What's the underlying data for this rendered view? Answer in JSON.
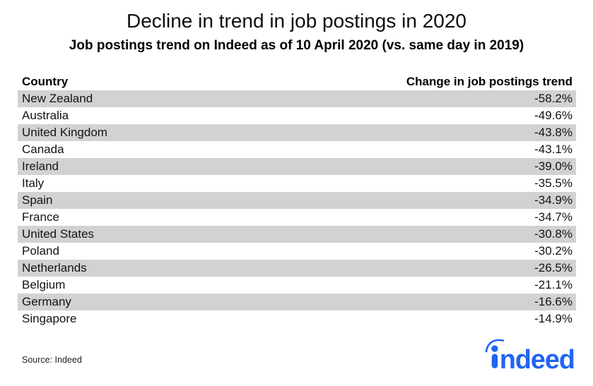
{
  "title": "Decline in trend in job postings in 2020",
  "subtitle": "Job postings trend on Indeed as of 10 April 2020 (vs. same day in 2019)",
  "table": {
    "columns": [
      "Country",
      "Change in job postings trend"
    ],
    "rows": [
      {
        "country": "New Zealand",
        "change": "-58.2%"
      },
      {
        "country": "Australia",
        "change": "-49.6%"
      },
      {
        "country": "United Kingdom",
        "change": "-43.8%"
      },
      {
        "country": "Canada",
        "change": "-43.1%"
      },
      {
        "country": "Ireland",
        "change": "-39.0%"
      },
      {
        "country": "Italy",
        "change": "-35.5%"
      },
      {
        "country": "Spain",
        "change": "-34.9%"
      },
      {
        "country": "France",
        "change": "-34.7%"
      },
      {
        "country": "United States",
        "change": "-30.8%"
      },
      {
        "country": "Poland",
        "change": "-30.2%"
      },
      {
        "country": "Netherlands",
        "change": "-26.5%"
      },
      {
        "country": "Belgium",
        "change": "-21.1%"
      },
      {
        "country": "Germany",
        "change": "-16.6%"
      },
      {
        "country": "Singapore",
        "change": "-14.9%"
      }
    ]
  },
  "footer": {
    "source": "Source: Indeed",
    "logo_text": "ndeed"
  },
  "colors": {
    "stripe": "#d2d2d2",
    "brand_blue": "#2164f3",
    "text": "#111111",
    "background": "#ffffff"
  },
  "chart_data": {
    "type": "table",
    "title": "Decline in trend in job postings in 2020",
    "subtitle": "Job postings trend on Indeed as of 10 April 2020 (vs. same day in 2019)",
    "columns": [
      "Country",
      "Change in job postings trend"
    ],
    "categories": [
      "New Zealand",
      "Australia",
      "United Kingdom",
      "Canada",
      "Ireland",
      "Italy",
      "Spain",
      "France",
      "United States",
      "Poland",
      "Netherlands",
      "Belgium",
      "Germany",
      "Singapore"
    ],
    "values": [
      -58.2,
      -49.6,
      -43.8,
      -43.1,
      -39.0,
      -35.5,
      -34.9,
      -34.7,
      -30.8,
      -30.2,
      -26.5,
      -21.1,
      -16.6,
      -14.9
    ],
    "unit": "%",
    "source": "Indeed",
    "layout": {
      "striped_rows": true,
      "stripe_color": "#d2d2d2",
      "value_alignment": "right"
    }
  }
}
